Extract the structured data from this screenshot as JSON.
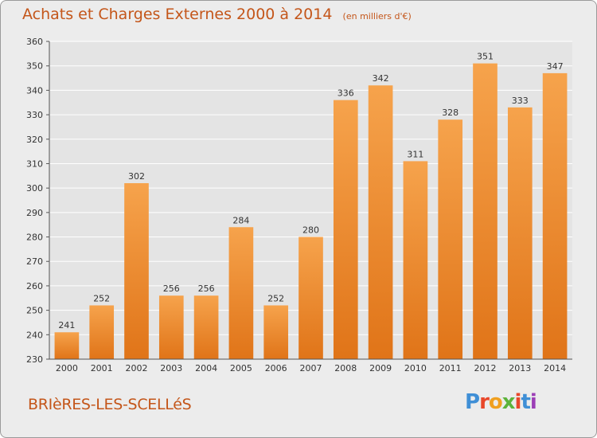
{
  "chart_data": {
    "type": "bar",
    "title": "Achats et Charges Externes 2000 à 2014",
    "subtitle": "(en milliers d'€)",
    "categories": [
      "2000",
      "2001",
      "2002",
      "2003",
      "2004",
      "2005",
      "2006",
      "2007",
      "2008",
      "2009",
      "2010",
      "2011",
      "2012",
      "2013",
      "2014"
    ],
    "values": [
      241,
      252,
      302,
      256,
      256,
      284,
      252,
      280,
      336,
      342,
      311,
      328,
      351,
      333,
      347
    ],
    "ylim": [
      230,
      360
    ],
    "yticks": [
      230,
      240,
      250,
      260,
      270,
      280,
      290,
      300,
      310,
      320,
      330,
      340,
      350,
      360
    ],
    "xlabel": "",
    "ylabel": "",
    "grid": true,
    "legend": "none",
    "colors": {
      "bar_light": "#f6a34c",
      "bar_dark": "#e07418",
      "title": "#c4561a",
      "grid": "#ffffff",
      "plot_bg": "#e4e4e4"
    }
  },
  "footer": {
    "commune": "BRIèRES-LES-SCELLéS",
    "brand": "Proxiti",
    "brand_colors": [
      "#3f8fd6",
      "#e8472a",
      "#f0a020",
      "#5cb33c",
      "#e8472a",
      "#3f8fd6",
      "#9c3fb6"
    ]
  }
}
